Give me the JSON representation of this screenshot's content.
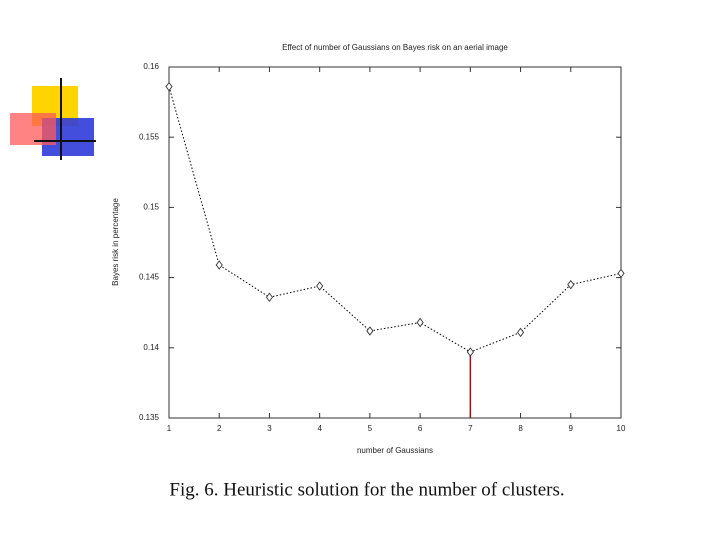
{
  "chart_data": {
    "type": "line",
    "title": "Effect of number of Gaussians on Bayes risk on an aerial image",
    "x_label": "number of Gaussians",
    "y_label": "Bayes risk in percentage",
    "caption": "Fig. 6.   Heuristic solution for the number of clusters.",
    "x": [
      1,
      2,
      3,
      4,
      5,
      6,
      7,
      8,
      9,
      10
    ],
    "series": [
      {
        "color": "#000000",
        "values": [
          0.1586,
          0.1459,
          0.1436,
          0.1444,
          0.1412,
          0.1418,
          0.1397,
          0.1411,
          0.1445,
          0.1453
        ]
      }
    ],
    "highlight": {
      "index": 6,
      "color": "#8b1a1a"
    },
    "xlim": [
      1,
      10
    ],
    "xticks": [
      1,
      2,
      3,
      4,
      5,
      6,
      7,
      8,
      9,
      10
    ],
    "ylim": [
      0.135,
      0.16
    ],
    "yticks": [
      0.135,
      0.14,
      0.145,
      0.15,
      0.155,
      0.16
    ]
  }
}
